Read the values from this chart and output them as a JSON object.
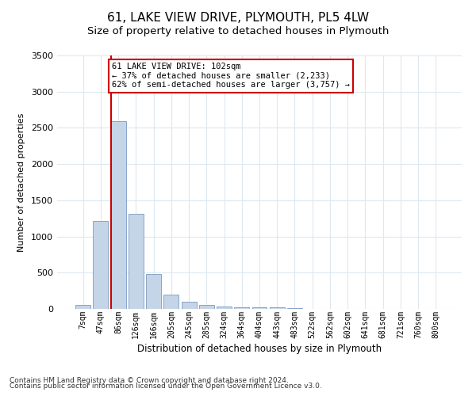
{
  "title": "61, LAKE VIEW DRIVE, PLYMOUTH, PL5 4LW",
  "subtitle": "Size of property relative to detached houses in Plymouth",
  "xlabel": "Distribution of detached houses by size in Plymouth",
  "ylabel": "Number of detached properties",
  "categories": [
    "7sqm",
    "47sqm",
    "86sqm",
    "126sqm",
    "166sqm",
    "205sqm",
    "245sqm",
    "285sqm",
    "324sqm",
    "364sqm",
    "404sqm",
    "443sqm",
    "483sqm",
    "522sqm",
    "562sqm",
    "602sqm",
    "641sqm",
    "681sqm",
    "721sqm",
    "760sqm",
    "800sqm"
  ],
  "values": [
    50,
    1210,
    2590,
    1310,
    480,
    195,
    100,
    55,
    30,
    20,
    25,
    20,
    15,
    5,
    5,
    3,
    2,
    2,
    2,
    1,
    2
  ],
  "bar_color": "#c5d5e8",
  "bar_edge_color": "#7a9abf",
  "highlight_bar_index": 2,
  "red_line_color": "#cc0000",
  "annotation_text": "61 LAKE VIEW DRIVE: 102sqm\n← 37% of detached houses are smaller (2,233)\n62% of semi-detached houses are larger (3,757) →",
  "annotation_box_color": "#ffffff",
  "annotation_box_edge_color": "#cc0000",
  "ylim": [
    0,
    3500
  ],
  "yticks": [
    0,
    500,
    1000,
    1500,
    2000,
    2500,
    3000,
    3500
  ],
  "footer_line1": "Contains HM Land Registry data © Crown copyright and database right 2024.",
  "footer_line2": "Contains public sector information licensed under the Open Government Licence v3.0.",
  "background_color": "#ffffff",
  "grid_color": "#dde8f0",
  "title_fontsize": 11,
  "subtitle_fontsize": 9.5,
  "annotation_fontsize": 7.5,
  "footer_fontsize": 6.5,
  "ylabel_fontsize": 8,
  "xlabel_fontsize": 8.5
}
